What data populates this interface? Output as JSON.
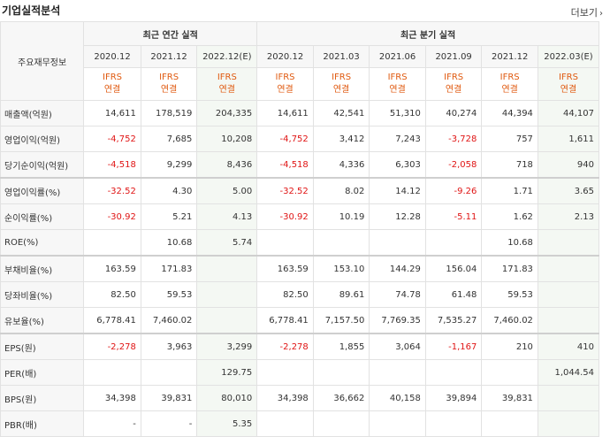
{
  "section": {
    "title": "기업실적분석",
    "more_label": "더보기",
    "more_arrow": "›"
  },
  "table": {
    "stub_label": "주요재무정보",
    "group_annual": "최근 연간 실적",
    "group_quarter": "최근 분기 실적",
    "periods": [
      {
        "label": "2020.12",
        "est": false
      },
      {
        "label": "2021.12",
        "est": false
      },
      {
        "label": "2022.12(E)",
        "est": true
      },
      {
        "label": "2020.12",
        "est": false
      },
      {
        "label": "2021.03",
        "est": false
      },
      {
        "label": "2021.06",
        "est": false
      },
      {
        "label": "2021.09",
        "est": false
      },
      {
        "label": "2021.12",
        "est": false
      },
      {
        "label": "2022.03(E)",
        "est": true
      }
    ],
    "ifrs_line1": "IFRS",
    "ifrs_line2": "연결",
    "rows": [
      {
        "label": "매출액(억원)",
        "values": [
          "14,611",
          "178,519",
          "204,335",
          "14,611",
          "42,541",
          "51,310",
          "40,274",
          "44,394",
          "44,107"
        ]
      },
      {
        "label": "영업이익(억원)",
        "values": [
          "-4,752",
          "7,685",
          "10,208",
          "-4,752",
          "3,412",
          "7,243",
          "-3,728",
          "757",
          "1,611"
        ]
      },
      {
        "label": "당기순이익(억원)",
        "values": [
          "-4,518",
          "9,299",
          "8,436",
          "-4,518",
          "4,336",
          "6,303",
          "-2,058",
          "718",
          "940"
        ]
      },
      {
        "label": "영업이익률(%)",
        "values": [
          "-32.52",
          "4.30",
          "5.00",
          "-32.52",
          "8.02",
          "14.12",
          "-9.26",
          "1.71",
          "3.65"
        ],
        "section_start": true
      },
      {
        "label": "순이익률(%)",
        "values": [
          "-30.92",
          "5.21",
          "4.13",
          "-30.92",
          "10.19",
          "12.28",
          "-5.11",
          "1.62",
          "2.13"
        ]
      },
      {
        "label": "ROE(%)",
        "values": [
          "",
          "10.68",
          "5.74",
          "",
          "",
          "",
          "",
          "10.68",
          ""
        ]
      },
      {
        "label": "부채비율(%)",
        "values": [
          "163.59",
          "171.83",
          "",
          "163.59",
          "153.10",
          "144.29",
          "156.04",
          "171.83",
          ""
        ],
        "section_start": true
      },
      {
        "label": "당좌비율(%)",
        "values": [
          "82.50",
          "59.53",
          "",
          "82.50",
          "89.61",
          "74.78",
          "61.48",
          "59.53",
          ""
        ]
      },
      {
        "label": "유보율(%)",
        "values": [
          "6,778.41",
          "7,460.02",
          "",
          "6,778.41",
          "7,157.50",
          "7,769.35",
          "7,535.27",
          "7,460.02",
          ""
        ]
      },
      {
        "label": "EPS(원)",
        "values": [
          "-2,278",
          "3,963",
          "3,299",
          "-2,278",
          "1,855",
          "3,064",
          "-1,167",
          "210",
          "410"
        ],
        "section_start": true
      },
      {
        "label": "PER(배)",
        "values": [
          "",
          "",
          "129.75",
          "",
          "",
          "",
          "",
          "",
          "1,044.54"
        ]
      },
      {
        "label": "BPS(원)",
        "values": [
          "34,398",
          "39,831",
          "80,010",
          "34,398",
          "36,662",
          "40,158",
          "39,894",
          "39,831",
          ""
        ]
      },
      {
        "label": "PBR(배)",
        "values": [
          "-",
          "-",
          "5.35",
          "",
          "",
          "",
          "",
          "",
          ""
        ]
      }
    ]
  }
}
